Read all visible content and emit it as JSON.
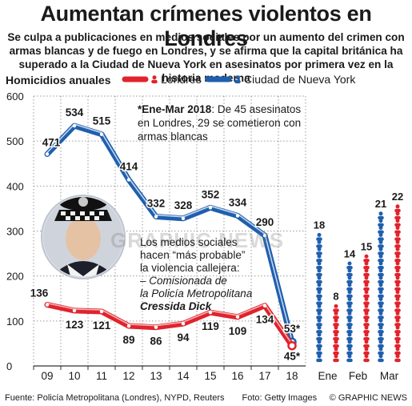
{
  "header": {
    "title": "Aumentan crímenes violentos en Londres",
    "subtitle": "Se culpa a publicaciones en medios sociales por un aumento del crimen con armas blancas y de fuego en Londres, y se afirma que la capital británica ha superado a la Ciudad de Nueva York en asesinatos por primera vez en la historia moderna"
  },
  "chart_data": [
    {
      "type": "line",
      "title": "Homicidios anuales",
      "categories": [
        "09",
        "10",
        "11",
        "12",
        "13",
        "14",
        "15",
        "16",
        "17",
        "18"
      ],
      "ylim": [
        0,
        600
      ],
      "yticks": [
        "0",
        "100",
        "200",
        "300",
        "400",
        "500",
        "600"
      ],
      "series": [
        {
          "name": "Londres",
          "color": "#e0232d",
          "values": [
            136,
            123,
            121,
            89,
            86,
            94,
            119,
            109,
            134,
            45
          ],
          "labels": [
            "136",
            "123",
            "121",
            "89",
            "86",
            "94",
            "119",
            "109",
            "134",
            "45*"
          ]
        },
        {
          "name": "Ciudad de Nueva York",
          "color": "#1f5fae",
          "values": [
            471,
            534,
            515,
            414,
            332,
            328,
            352,
            334,
            290,
            53
          ],
          "labels": [
            "471",
            "534",
            "515",
            "414",
            "332",
            "328",
            "352",
            "334",
            "290",
            "53*"
          ]
        }
      ],
      "grid": true,
      "legend": "top"
    },
    {
      "type": "bar",
      "categories": [
        "Ene",
        "Feb",
        "Mar"
      ],
      "series": [
        {
          "name": "Ciudad de Nueva York",
          "color": "#1f5fae",
          "values": [
            18,
            14,
            21
          ]
        },
        {
          "name": "Londres",
          "color": "#e0232d",
          "values": [
            8,
            15,
            22
          ]
        }
      ]
    }
  ],
  "annotations": {
    "note": "*Ene-Mar 2018: De 45 asesinatos en Londres, 29 se cometieron con armas blancas",
    "quote_line1": "Los medios sociales",
    "quote_line2": "hacen “más probable”",
    "quote_line3": "la violencia callejera:",
    "quote_line4": "– Comisionada de",
    "quote_line5": "la Policía Metropolitana",
    "quote_name": "Cressida Dick"
  },
  "footer": {
    "source": "Fuente: Policía Metropolitana (Londres), NYPD, Reuters",
    "photo": "Foto: Getty Images",
    "brand": "© GRAPHIC NEWS"
  },
  "watermark": "GRAPHIC NEWS"
}
